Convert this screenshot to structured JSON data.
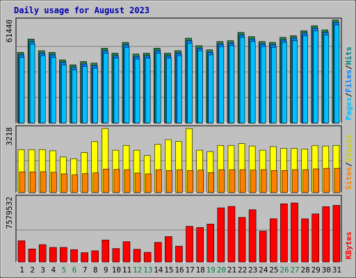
{
  "title": "Daily usage for August 2023",
  "colors": {
    "page_bg": "#c0c0c0",
    "plot_bg": "#c0c0c0",
    "title": "#0000aa",
    "hits": "#008080",
    "hits_label": "#008080",
    "files": "#0080ff",
    "files_label": "#0080ff",
    "pages": "#00c0ff",
    "pages_label": "#00c0ff",
    "visits": "#ffff00",
    "visits_label": "#d0d000",
    "sites": "#ff8000",
    "sites_label": "#ff8000",
    "kbytes": "#ff0000",
    "kbytes_label": "#ff0000",
    "separator": "#000000",
    "weekend_day": "#008040",
    "weekday_day": "#000000"
  },
  "chart_data": [
    {
      "type": "bar",
      "panel": "hits-files-pages",
      "max_label": "61440",
      "ylim": [
        0,
        61440
      ],
      "legend": [
        "Pages",
        "/",
        "Files",
        "/",
        "Hits"
      ],
      "categories": [
        "1",
        "2",
        "3",
        "4",
        "5",
        "6",
        "7",
        "8",
        "9",
        "10",
        "11",
        "12",
        "13",
        "14",
        "15",
        "16",
        "17",
        "18",
        "19",
        "20",
        "21",
        "22",
        "23",
        "24",
        "25",
        "26",
        "27",
        "28",
        "29",
        "30",
        "31"
      ],
      "series": [
        {
          "name": "Hits",
          "values": [
            42500,
            50500,
            43500,
            42500,
            38000,
            35000,
            37000,
            36000,
            45000,
            42000,
            48500,
            41500,
            42000,
            45000,
            42000,
            43500,
            51000,
            46500,
            44000,
            49000,
            49500,
            54500,
            52000,
            49000,
            48500,
            51500,
            52500,
            55500,
            58500,
            56000,
            62000
          ]
        },
        {
          "name": "Files",
          "values": [
            41000,
            49000,
            42000,
            41000,
            36500,
            33500,
            35500,
            34500,
            43500,
            40500,
            47000,
            40000,
            40500,
            43500,
            40500,
            42000,
            49500,
            45000,
            42500,
            47500,
            48000,
            53000,
            50500,
            47500,
            47000,
            50000,
            51000,
            54000,
            57000,
            54500,
            60500
          ]
        },
        {
          "name": "Pages",
          "values": [
            39500,
            47500,
            40500,
            39500,
            35000,
            32000,
            34000,
            33000,
            42000,
            39000,
            45500,
            38500,
            39000,
            42000,
            39000,
            40500,
            48000,
            43500,
            41000,
            46000,
            46500,
            51500,
            49000,
            46000,
            45500,
            48500,
            49500,
            52500,
            55500,
            53000,
            59000
          ]
        }
      ]
    },
    {
      "type": "bar",
      "panel": "visits-sites",
      "max_label": "3218",
      "ylim": [
        0,
        3218
      ],
      "legend": [
        "Sites",
        "/",
        "Visits"
      ],
      "categories": [
        "1",
        "2",
        "3",
        "4",
        "5",
        "6",
        "7",
        "8",
        "9",
        "10",
        "11",
        "12",
        "13",
        "14",
        "15",
        "16",
        "17",
        "18",
        "19",
        "20",
        "21",
        "22",
        "23",
        "24",
        "25",
        "26",
        "27",
        "28",
        "29",
        "30",
        "31"
      ],
      "series": [
        {
          "name": "Visits",
          "values": [
            2160,
            2160,
            2160,
            2100,
            1790,
            1700,
            2010,
            2560,
            3218,
            2130,
            2370,
            2130,
            1860,
            2420,
            2660,
            2570,
            3218,
            2130,
            2060,
            2370,
            2370,
            2460,
            2340,
            2130,
            2310,
            2220,
            2220,
            2190,
            2370,
            2340,
            2370
          ]
        },
        {
          "name": "Sites",
          "values": [
            1040,
            1040,
            1050,
            1020,
            940,
            890,
            950,
            990,
            1180,
            1160,
            1150,
            980,
            940,
            1150,
            1110,
            1150,
            1110,
            1130,
            1000,
            1150,
            1150,
            1150,
            1130,
            1150,
            1110,
            1110,
            1150,
            1150,
            1190,
            1220,
            1220
          ]
        }
      ]
    },
    {
      "type": "bar",
      "panel": "kbytes",
      "max_label": "7579532",
      "ylim": [
        0,
        7579532
      ],
      "legend": [
        "KBytes"
      ],
      "categories": [
        "1",
        "2",
        "3",
        "4",
        "5",
        "6",
        "7",
        "8",
        "9",
        "10",
        "11",
        "12",
        "13",
        "14",
        "15",
        "16",
        "17",
        "18",
        "19",
        "20",
        "21",
        "22",
        "23",
        "24",
        "25",
        "26",
        "27",
        "28",
        "29",
        "30",
        "31"
      ],
      "series": [
        {
          "name": "KBytes",
          "values": [
            2520000,
            1550000,
            2060000,
            1730000,
            1730000,
            1470000,
            1110000,
            1330000,
            2610000,
            1600000,
            2410000,
            1510000,
            1150000,
            2330000,
            3020000,
            1880000,
            4230000,
            4090000,
            4500000,
            6420000,
            6590000,
            5290000,
            6200000,
            3660000,
            5130000,
            6900000,
            7000000,
            5120000,
            5700000,
            6560000,
            6720000
          ]
        }
      ]
    }
  ]
}
